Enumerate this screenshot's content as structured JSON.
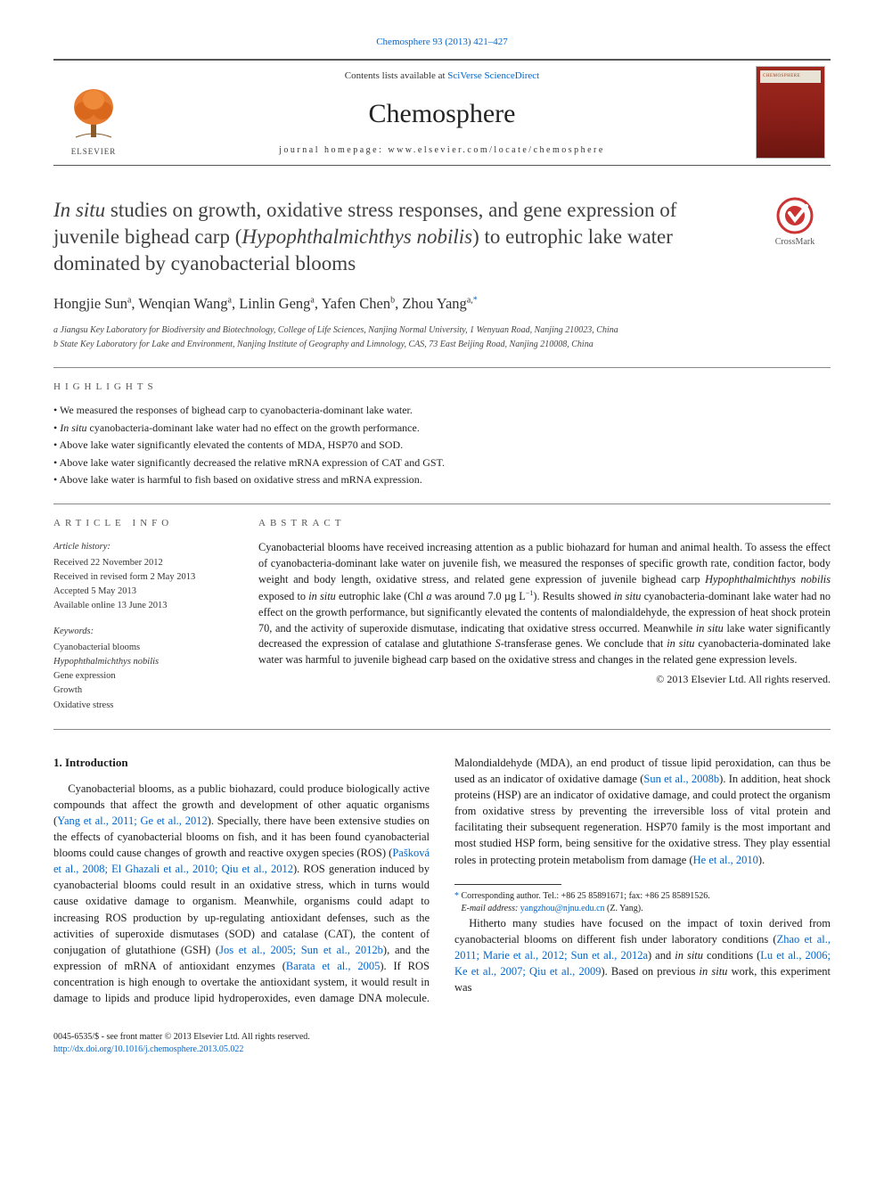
{
  "citation_line": "Chemosphere 93 (2013) 421–427",
  "header": {
    "contents_prefix": "Contents lists available at ",
    "contents_link": "SciVerse ScienceDirect",
    "journal": "Chemosphere",
    "homepage_prefix": "journal homepage: ",
    "homepage": "www.elsevier.com/locate/chemosphere",
    "publisher_word": "ELSEVIER",
    "cover_title": "CHEMOSPHERE",
    "elsevier_logo_color": "#e67a2e",
    "cover_bg": "#8a1f18",
    "link_color": "#0066cc",
    "border_color": "#555"
  },
  "crossmark_label": "CrossMark",
  "title_html": "<em>In situ</em> studies on growth, oxidative stress responses, and gene expression of juvenile bighead carp (<em>Hypophthalmichthys nobilis</em>) to eutrophic lake water dominated by cyanobacterial blooms",
  "authors_html": "Hongjie Sun<sup>a</sup>, Wenqian Wang<sup>a</sup>, Linlin Geng<sup>a</sup>, Yafen Chen<sup>b</sup>, Zhou Yang<sup>a,</sup><sup class=\"corr\">*</sup>",
  "affiliations": [
    "a Jiangsu Key Laboratory for Biodiversity and Biotechnology, College of Life Sciences, Nanjing Normal University, 1 Wenyuan Road, Nanjing 210023, China",
    "b State Key Laboratory for Lake and Environment, Nanjing Institute of Geography and Limnology, CAS, 73 East Beijing Road, Nanjing 210008, China"
  ],
  "highlights_label": "HIGHLIGHTS",
  "highlights": [
    "We measured the responses of bighead carp to cyanobacteria-dominant lake water.",
    "<em>In situ</em> cyanobacteria-dominant lake water had no effect on the growth performance.",
    "Above lake water significantly elevated the contents of MDA, HSP70 and SOD.",
    "Above lake water significantly decreased the relative mRNA expression of CAT and GST.",
    "Above lake water is harmful to fish based on oxidative stress and mRNA expression."
  ],
  "article_info_label": "ARTICLE INFO",
  "history": {
    "label": "Article history:",
    "received": "Received 22 November 2012",
    "revised": "Received in revised form 2 May 2013",
    "accepted": "Accepted 5 May 2013",
    "online": "Available online 13 June 2013"
  },
  "keywords_label": "Keywords:",
  "keywords": [
    "Cyanobacterial blooms",
    "<em>Hypophthalmichthys nobilis</em>",
    "Gene expression",
    "Growth",
    "Oxidative stress"
  ],
  "abstract_label": "ABSTRACT",
  "abstract_html": "Cyanobacterial blooms have received increasing attention as a public biohazard for human and animal health. To assess the effect of cyanobacteria-dominant lake water on juvenile fish, we measured the responses of specific growth rate, condition factor, body weight and body length, oxidative stress, and related gene expression of juvenile bighead carp <em>Hypophthalmichthys nobilis</em> exposed to <em>in situ</em> eutrophic lake (Chl <em>a</em> was around 7.0 µg L<sup>−1</sup>). Results showed <em>in situ</em> cyanobacteria-dominant lake water had no effect on the growth performance, but significantly elevated the contents of malondialdehyde, the expression of heat shock protein 70, and the activity of superoxide dismutase, indicating that oxidative stress occurred. Meanwhile <em>in situ</em> lake water significantly decreased the expression of catalase and glutathione <em>S</em>-transferase genes. We conclude that <em>in situ</em> cyanobacteria-dominated lake water was harmful to juvenile bighead carp based on the oxidative stress and changes in the related gene expression levels.",
  "abstract_copyright": "© 2013 Elsevier Ltd. All rights reserved.",
  "intro_heading": "1. Introduction",
  "intro_paragraphs": [
    "Cyanobacterial blooms, as a public biohazard, could produce biologically active compounds that affect the growth and development of other aquatic organisms (<a class=\"ref\" href=\"#\">Yang et al., 2011; Ge et al., 2012</a>). Specially, there have been extensive studies on the effects of cyanobacterial blooms on fish, and it has been found cyanobacterial blooms could cause changes of growth and reactive oxygen species (ROS) (<a class=\"ref\" href=\"#\">Pašková et al., 2008; El Ghazali et al., 2010; Qiu et al., 2012</a>). ROS generation induced by cyanobacterial blooms could result in an oxidative stress, which in turns would cause oxidative damage to organism. Meanwhile, organisms could adapt to increasing ROS production by up-regulating antioxidant defenses, such as the activities of superoxide dismutases (SOD) and catalase (CAT), the content of conjugation of glutathione (GSH) (<a class=\"ref\" href=\"#\">Jos et al., 2005; Sun et al., 2012b</a>), and the expression of mRNA of antioxidant enzymes (<a class=\"ref\" href=\"#\">Barata et al., 2005</a>). If ROS concentration is high enough to overtake the antioxidant system, it would result in damage to lipids and produce lipid hydroperoxides, even damage DNA molecule. Malondialdehyde (MDA), an end product of tissue lipid peroxidation, can thus be used as an indicator of oxidative damage (<a class=\"ref\" href=\"#\">Sun et al., 2008b</a>). In addition, heat shock proteins (HSP) are an indicator of oxidative damage, and could protect the organism from oxidative stress by preventing the irreversible loss of vital protein and facilitating their subsequent regeneration. HSP70 family is the most important and most studied HSP form, being sensitive for the oxidative stress. They play essential roles in protecting protein metabolism from damage (<a class=\"ref\" href=\"#\">He et al., 2010</a>).",
    "Hitherto many studies have focused on the impact of toxin derived from cyanobacterial blooms on different fish under laboratory conditions (<a class=\"ref\" href=\"#\">Zhao et al., 2011; Marie et al., 2012; Sun et al., 2012a</a>) and <em>in situ</em> conditions (<a class=\"ref\" href=\"#\">Lu et al., 2006; Ke et al., 2007; Qiu et al., 2009</a>). Based on previous <em>in situ</em> work, this experiment was"
  ],
  "footnote": {
    "star": "*",
    "line1": " Corresponding author. Tel.: +86 25 85891671; fax: +86 25 85891526.",
    "email_label": "E-mail address: ",
    "email": "yangzhou@njnu.edu.cn",
    "email_suffix": " (Z. Yang)."
  },
  "footer": {
    "line1": "0045-6535/$ - see front matter © 2013 Elsevier Ltd. All rights reserved.",
    "doi": "http://dx.doi.org/10.1016/j.chemosphere.2013.05.022"
  }
}
